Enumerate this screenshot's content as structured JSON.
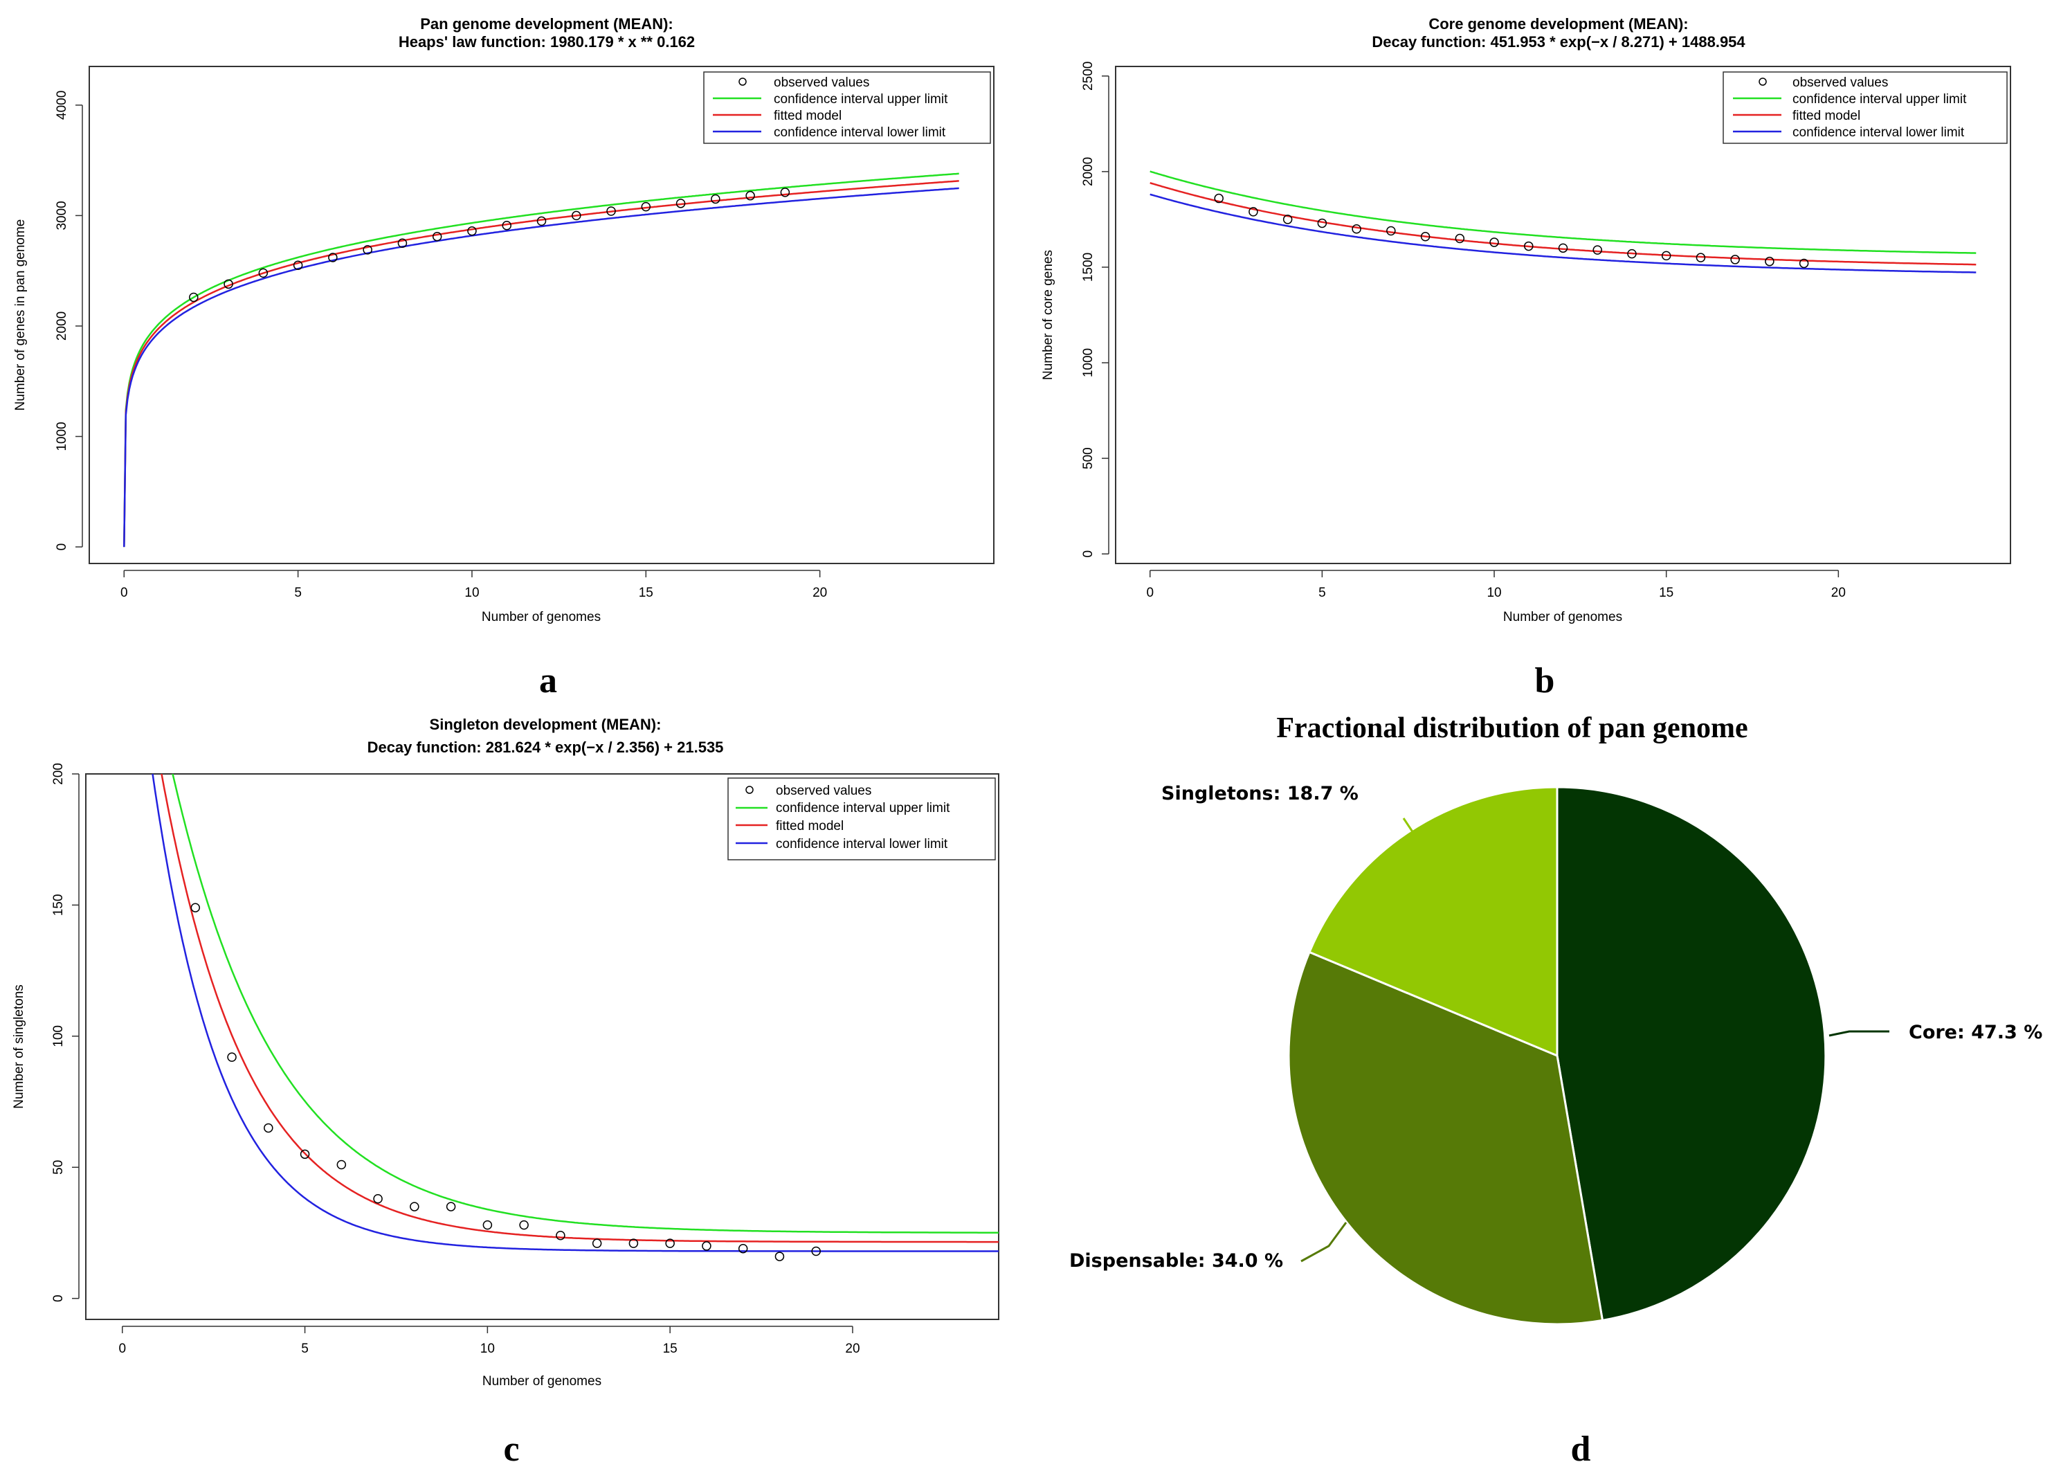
{
  "colors": {
    "observed": "#000000",
    "upper": "#22e022",
    "fitted": "#e52222",
    "lower": "#2222e0",
    "core": "#033503",
    "dispensable": "#567a07",
    "singletons": "#92c803"
  },
  "panel_letters": [
    "a",
    "b",
    "c",
    "d"
  ],
  "chart_data": [
    {
      "id": "pan",
      "type": "line",
      "title": "Pan genome development (MEAN):",
      "subtitle": "Heaps' law function: 1980.179 * x ** 0.162",
      "xlabel": "Number of genomes",
      "ylabel": "Number of genes in pan genome",
      "xlim": [
        -1,
        25
      ],
      "ylim": [
        -150,
        4350
      ],
      "xticks": [
        0,
        5,
        10,
        15,
        20
      ],
      "yticks": [
        0,
        1000,
        2000,
        3000,
        4000
      ],
      "legend": {
        "position": "top-right",
        "entries": [
          "observed values",
          "confidence interval upper limit",
          "fitted model",
          "confidence interval lower limit"
        ]
      },
      "series": [
        {
          "name": "confidence interval upper limit",
          "a": 2019.78,
          "b": 0.162
        },
        {
          "name": "fitted model",
          "a": 1980.179,
          "b": 0.162
        },
        {
          "name": "confidence interval lower limit",
          "a": 1940.58,
          "b": 0.162
        }
      ],
      "observed": {
        "x": [
          2,
          3,
          4,
          5,
          6,
          7,
          8,
          9,
          10,
          11,
          12,
          13,
          14,
          15,
          16,
          17,
          18,
          19
        ],
        "y": [
          2260,
          2380,
          2480,
          2550,
          2620,
          2690,
          2750,
          2810,
          2860,
          2910,
          2950,
          3000,
          3040,
          3080,
          3110,
          3150,
          3180,
          3210
        ]
      }
    },
    {
      "id": "core",
      "type": "line",
      "title": "Core genome development (MEAN):",
      "subtitle": "Decay function: 451.953 * exp(−x / 8.271) + 1488.954",
      "xlabel": "Number of genomes",
      "ylabel": "Number of core genes",
      "xlim": [
        -1,
        25
      ],
      "ylim": [
        -50,
        2550
      ],
      "xticks": [
        0,
        5,
        10,
        15,
        20
      ],
      "yticks": [
        0,
        500,
        1000,
        1500,
        2000,
        2500
      ],
      "legend": {
        "position": "top-right",
        "entries": [
          "observed values",
          "confidence interval upper limit",
          "fitted model",
          "confidence interval lower limit"
        ]
      },
      "series": [
        {
          "name": "confidence interval upper limit",
          "a": 451.953,
          "tau": 8.271,
          "c": 1548.954
        },
        {
          "name": "fitted model",
          "a": 451.953,
          "tau": 8.271,
          "c": 1488.954
        },
        {
          "name": "confidence interval lower limit",
          "a": 431.953,
          "tau": 8.271,
          "c": 1448.954
        }
      ],
      "observed": {
        "x": [
          2,
          3,
          4,
          5,
          6,
          7,
          8,
          9,
          10,
          11,
          12,
          13,
          14,
          15,
          16,
          17,
          18,
          19
        ],
        "y": [
          1860,
          1790,
          1750,
          1730,
          1700,
          1690,
          1660,
          1650,
          1630,
          1610,
          1600,
          1590,
          1570,
          1560,
          1550,
          1540,
          1530,
          1520
        ]
      }
    },
    {
      "id": "singletons",
      "type": "line",
      "title": "Singleton development (MEAN):",
      "subtitle": "Decay function: 281.624 * exp(−x / 2.356) + 21.535",
      "xlabel": "Number of genomes",
      "ylabel": "Number of singletons",
      "xlim": [
        -1,
        24
      ],
      "ylim": [
        -8,
        200
      ],
      "xticks": [
        0,
        5,
        10,
        15,
        20
      ],
      "yticks": [
        0,
        50,
        100,
        150,
        200
      ],
      "legend": {
        "position": "top-right",
        "entries": [
          "observed values",
          "confidence interval upper limit",
          "fitted model",
          "confidence interval lower limit"
        ]
      },
      "series": [
        {
          "name": "confidence interval upper limit",
          "a": 281.624,
          "tau": 2.9,
          "c": 25.0
        },
        {
          "name": "fitted model",
          "a": 281.624,
          "tau": 2.356,
          "c": 21.535
        },
        {
          "name": "confidence interval lower limit",
          "a": 281.624,
          "tau": 1.9,
          "c": 18.0
        }
      ],
      "observed": {
        "x": [
          2,
          3,
          4,
          5,
          6,
          7,
          8,
          9,
          10,
          11,
          12,
          13,
          14,
          15,
          16,
          17,
          18,
          19
        ],
        "y": [
          149,
          92,
          65,
          55,
          51,
          38,
          35,
          35,
          28,
          28,
          24,
          21,
          21,
          21,
          20,
          19,
          16,
          18
        ]
      }
    },
    {
      "id": "fractions",
      "type": "pie",
      "title": "Fractional distribution of pan genome",
      "slices": [
        {
          "name": "Core",
          "value": 47.3,
          "label": "Core: 47.3 %"
        },
        {
          "name": "Dispensable",
          "value": 34.0,
          "label": "Dispensable: 34.0 %"
        },
        {
          "name": "Singletons",
          "value": 18.7,
          "label": "Singletons: 18.7 %"
        }
      ]
    }
  ]
}
